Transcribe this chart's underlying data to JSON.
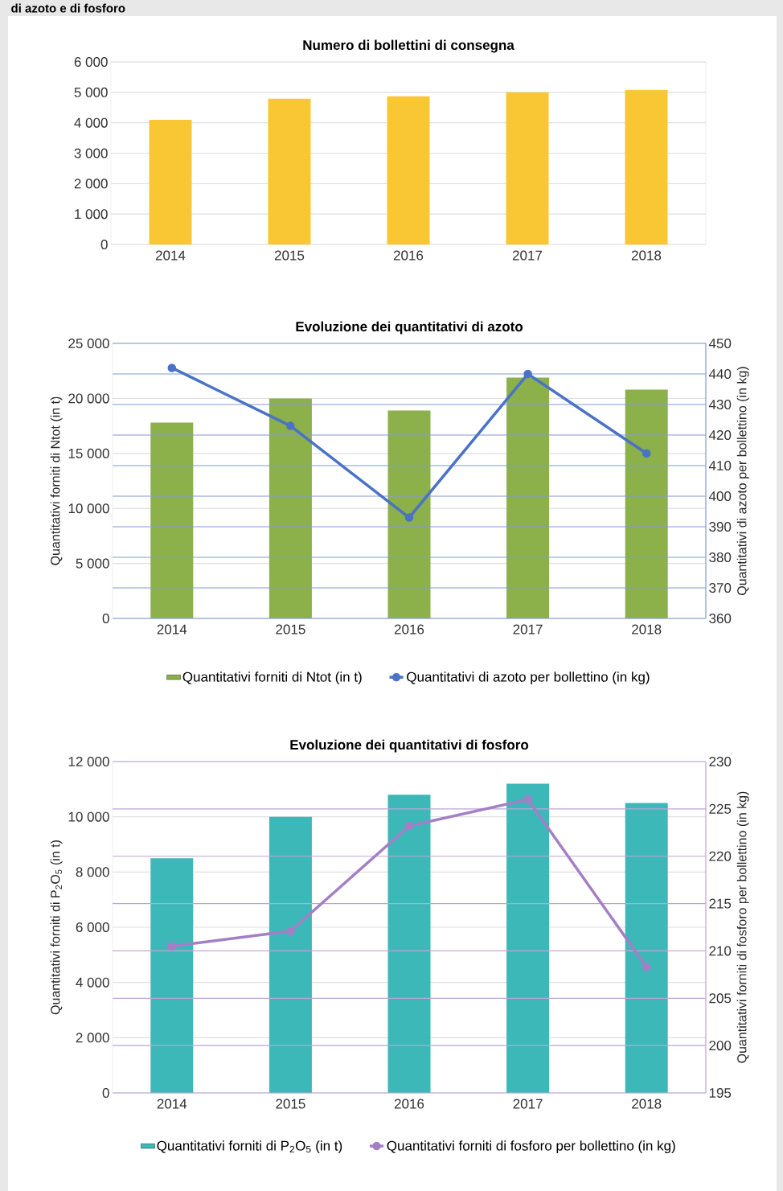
{
  "chart_data": [
    {
      "type": "bar",
      "title": "Numero di bollettini di consegna",
      "annotations": [
        "di azoto e di fosforo"
      ],
      "categories": [
        "2014",
        "2015",
        "2016",
        "2017",
        "2018"
      ],
      "values": [
        4100,
        4790,
        4870,
        5000,
        5080
      ],
      "color": "#f9c733",
      "ylim": [
        0,
        6000
      ],
      "yticks": [
        0,
        {
          "value": 1000,
          "label": "1 000"
        },
        {
          "value": 2000,
          "label": "2 000"
        },
        {
          "value": 3000,
          "label": "3 000"
        },
        {
          "value": 4000,
          "label": "4 000"
        },
        {
          "value": 5000,
          "label": "5 000"
        },
        {
          "value": 6000,
          "label": "6 000"
        }
      ],
      "grid": "y"
    },
    {
      "type": "bar",
      "title": "Evoluzione dei quantitativi di azoto",
      "categories": [
        "2014",
        "2015",
        "2016",
        "2017",
        "2018"
      ],
      "ylabel": "Quantitativi forniti di Ntot (in t)",
      "y2label": "Quantitativi di azoto per bollettino (in kg)",
      "series": [
        {
          "name": "Quantitativi forniti di Ntot (in t)",
          "color": "#8cb04a",
          "values": [
            17800,
            20000,
            18900,
            21900,
            20800
          ]
        },
        {
          "name": "Quantitativi di azoto per bollettino (in kg)",
          "color": "#4a72c6",
          "type": "line",
          "axis": "y2",
          "marker": "circle",
          "values": [
            442,
            423,
            393,
            440,
            414
          ]
        }
      ],
      "ylim": [
        0,
        25000
      ],
      "yticks": [
        0,
        {
          "value": 5000,
          "label": "5 000"
        },
        {
          "value": 10000,
          "label": "10 000"
        },
        {
          "value": 15000,
          "label": "15 000"
        },
        {
          "value": 20000,
          "label": "20 000"
        },
        {
          "value": 25000,
          "label": "25 000"
        }
      ],
      "y2lim": [
        360,
        450
      ],
      "y2ticks": [
        360,
        370,
        380,
        390,
        400,
        410,
        420,
        430,
        440,
        450
      ],
      "grid": true,
      "legend": "bottom"
    },
    {
      "type": "bar",
      "title": "Evoluzione dei quantitativi di fosforo",
      "categories": [
        "2014",
        "2015",
        "2016",
        "2017",
        "2018"
      ],
      "ylabel": "Quantitativi forniti di P$_{2}$O$_{5}$ (in t)",
      "y2label": "Quantitativi forniti di fosforo per bollettino (in kg)",
      "series": [
        {
          "name": "Quantitativi forniti di P$_{2}$O$_{5}$ (in t)",
          "color": "#3db8b8",
          "values": [
            8500,
            10000,
            10800,
            11200,
            10500
          ]
        },
        {
          "name": "Quantitativi forniti di fosforo per bollettino (in kg)",
          "color": "#a47fc6",
          "type": "line",
          "axis": "y2",
          "marker": "circle",
          "values": [
            210.5,
            212.1,
            223.2,
            226.0,
            208.3
          ]
        }
      ],
      "ylim": [
        0,
        12000
      ],
      "yticks": [
        0,
        {
          "value": 2000,
          "label": "2 000"
        },
        {
          "value": 4000,
          "label": "4 000"
        },
        {
          "value": 6000,
          "label": "6 000"
        },
        {
          "value": 8000,
          "label": "8 000"
        },
        {
          "value": 10000,
          "label": "10 000"
        },
        {
          "value": 12000,
          "label": "12 000"
        }
      ],
      "y2lim": [
        195,
        230
      ],
      "y2ticks": [
        195,
        200,
        205,
        210,
        215,
        220,
        225,
        230
      ],
      "grid": true,
      "legend": "bottom"
    }
  ]
}
